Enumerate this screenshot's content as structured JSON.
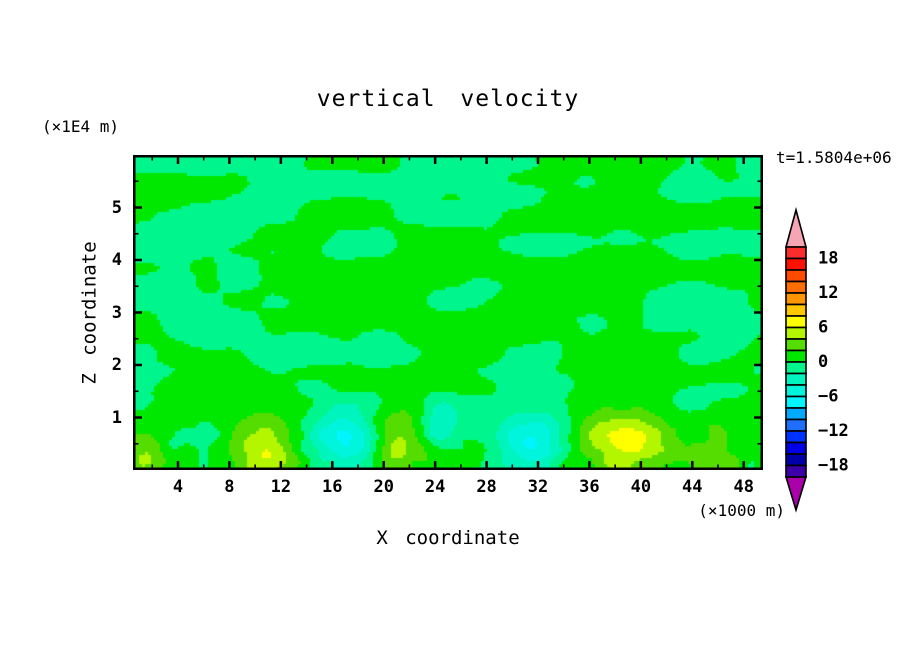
{
  "page": {
    "background": "#FFFFFF",
    "foreground": "#000000"
  },
  "chart_data": {
    "type": "filled_contour",
    "title": "vertical velocity",
    "time_label": "t=1.5804e+06",
    "x_axis": {
      "label": "X coordinate",
      "units_label": "(×1000 m)",
      "range": [
        0.5,
        49.5
      ],
      "major_ticks": [
        4,
        8,
        12,
        16,
        20,
        24,
        28,
        32,
        36,
        40,
        44,
        48
      ],
      "minor_tick_step": 2
    },
    "z_axis": {
      "label": "Z coordinate",
      "units_label": "(×1E4 m)",
      "range": [
        0,
        6
      ],
      "major_ticks": [
        1,
        2,
        3,
        4,
        5
      ],
      "minor_tick_step": 0.5
    },
    "colorbar": {
      "min": -20,
      "max": 20,
      "step": 2,
      "tick_values": [
        18,
        12,
        6,
        0,
        -6,
        -12,
        -18
      ],
      "tick_labels": [
        "18",
        "12",
        "6",
        "0",
        "−6",
        "−12",
        "−18"
      ],
      "colors_low_to_high": [
        "#3C00A8",
        "#0000AA",
        "#0000E6",
        "#0032FF",
        "#1E6EFF",
        "#00AAFF",
        "#00F5FF",
        "#00F5DC",
        "#00F5BE",
        "#00F58C",
        "#00E800",
        "#55DC00",
        "#B4F500",
        "#FFFF00",
        "#FFC800",
        "#FF9600",
        "#FF6E00",
        "#FF4B00",
        "#FF1000",
        "#FA2D2D"
      ],
      "under_arrow_color": "#AA00AA",
      "over_arrow_color": "#F5A5B4"
    },
    "field": {
      "description": "Vertical velocity field: weak near-zero anomalies (−2..+2 band, alternating green / spring-green elongated horizontal patches) through most of the domain, with stronger localized updrafts (yellow-green, up to ~+6) and downdrafts (cyan, down to ~−6) near the bottom boundary.",
      "background_bands": [
        "#00F58C",
        "#00E800"
      ],
      "base_noise": {
        "layers": [
          {
            "amp": 1.12,
            "xscale": 6.5,
            "zscale": 0.52,
            "ox": 3.1,
            "oz": 9.7,
            "seed": 11
          },
          {
            "amp": 0.62,
            "xscale": 2.7,
            "zscale": 0.33,
            "ox": 7.7,
            "oz": 1.3,
            "seed": 37
          }
        ],
        "bottom_layer": {
          "amp": 1.35,
          "xscale": 1.25,
          "zscale": 0.27,
          "ox": 2.2,
          "oz": 5.5,
          "seed": 53,
          "zmax": 1.45
        }
      },
      "features": [
        {
          "x": 1.3,
          "z": 0.3,
          "sx": 1.1,
          "sz": 0.35,
          "peak": 3.4
        },
        {
          "x": 10.8,
          "z": 0.35,
          "sx": 1.7,
          "sz": 0.42,
          "peak": 5.6
        },
        {
          "x": 16.7,
          "z": 0.55,
          "sx": 2.0,
          "sz": 0.5,
          "peak": -5.8
        },
        {
          "x": 21.0,
          "z": 0.5,
          "sx": 1.6,
          "sz": 0.45,
          "peak": 5.2
        },
        {
          "x": 24.4,
          "z": 0.85,
          "sx": 0.9,
          "sz": 0.33,
          "peak": -3.6
        },
        {
          "x": 31.6,
          "z": 0.55,
          "sx": 2.1,
          "sz": 0.5,
          "peak": -5.8
        },
        {
          "x": 38.6,
          "z": 0.55,
          "sx": 2.7,
          "sz": 0.55,
          "peak": 5.8
        },
        {
          "x": 45.8,
          "z": 0.45,
          "sx": 1.9,
          "sz": 0.5,
          "peak": 2.8
        }
      ]
    }
  }
}
